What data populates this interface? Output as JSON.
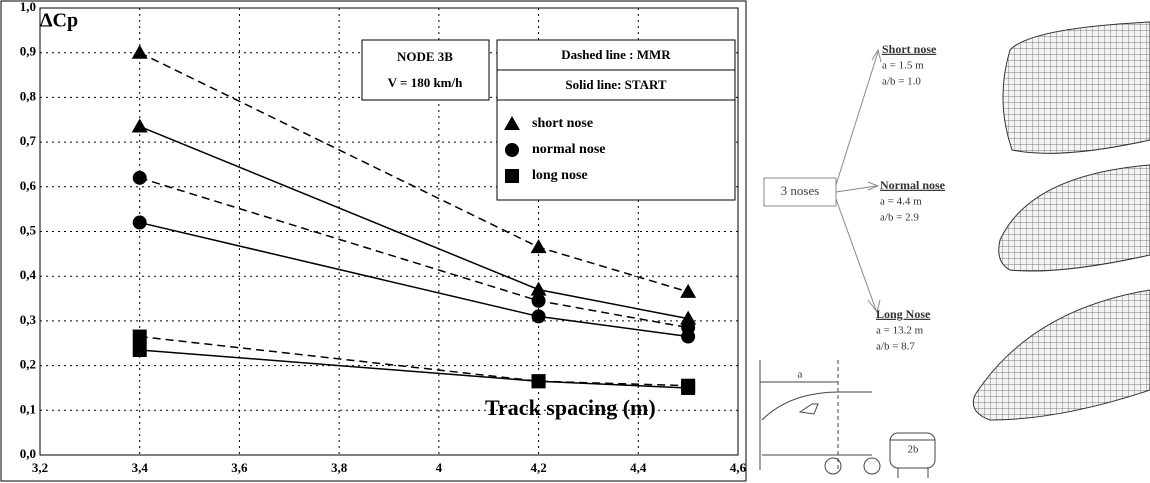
{
  "chart_data": {
    "type": "line",
    "y_label": "ΔCp",
    "x_label": "Track spacing (m)",
    "annotations": {
      "node": "NODE 3B",
      "speed": "V = 180 km/h",
      "dashed": "Dashed line : MMR",
      "solid": "Solid line: START"
    },
    "x": [
      3.4,
      4.2,
      4.5
    ],
    "series": [
      {
        "name": "short nose",
        "marker": "triangle",
        "color": "#000",
        "mmr": [
          0.9,
          0.465,
          0.365
        ],
        "start": [
          0.735,
          0.37,
          0.305
        ]
      },
      {
        "name": "normal nose",
        "marker": "circle",
        "color": "#000",
        "mmr": [
          0.62,
          0.345,
          0.285
        ],
        "start": [
          0.52,
          0.31,
          0.265
        ]
      },
      {
        "name": "long nose",
        "marker": "square",
        "color": "#000",
        "mmr": [
          0.265,
          0.165,
          0.155
        ],
        "start": [
          0.235,
          0.165,
          0.15
        ]
      }
    ],
    "xlim": [
      3.2,
      4.6
    ],
    "xticks": [
      {
        "value": 3.2,
        "label": "3,2"
      },
      {
        "value": 3.4,
        "label": "3,4"
      },
      {
        "value": 3.6,
        "label": "3,6"
      },
      {
        "value": 3.8,
        "label": "3,8"
      },
      4,
      {
        "value": 4.2,
        "label": "4,2"
      },
      {
        "value": 4.4,
        "label": "4,4"
      },
      {
        "value": 4.6,
        "label": "4,6"
      }
    ],
    "ylim": [
      0,
      1
    ],
    "yticks": [
      {
        "value": 0,
        "label": "0,0"
      },
      {
        "value": 0.1,
        "label": "0,1"
      },
      {
        "value": 0.2,
        "label": "0,2"
      },
      {
        "value": 0.3,
        "label": "0,3"
      },
      {
        "value": 0.4,
        "label": "0,4"
      },
      {
        "value": 0.5,
        "label": "0,5"
      },
      {
        "value": 0.6,
        "label": "0,6"
      },
      {
        "value": 0.7,
        "label": "0,7"
      },
      {
        "value": 0.8,
        "label": "0,8"
      },
      {
        "value": 0.9,
        "label": "0,9"
      },
      {
        "value": 1,
        "label": "1,0"
      }
    ],
    "grid": true
  },
  "diagram": {
    "center": "3 noses",
    "noses": [
      {
        "title": "Short nose",
        "a": "a = 1.5 m",
        "ratio": "a/b = 1.0"
      },
      {
        "title": "Normal nose",
        "a": "a  = 4.4 m",
        "ratio": "a/b = 2.9"
      },
      {
        "title": "Long Nose",
        "a": "a = 13.2 m",
        "ratio": "a/b = 8.7"
      }
    ],
    "dim_a": "a",
    "dim_b": "2b"
  }
}
